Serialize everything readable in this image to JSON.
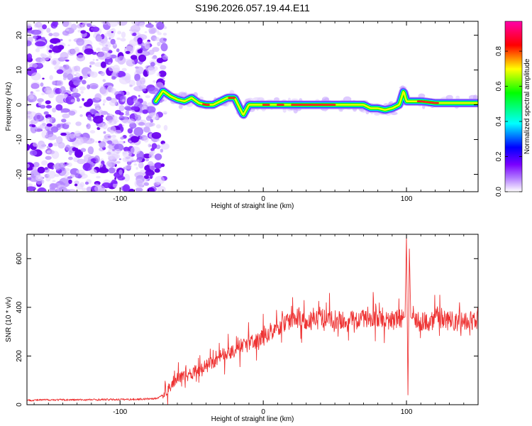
{
  "title": "S196.2026.057.19.44.E11",
  "chart_data": [
    {
      "type": "heatmap",
      "name": "spectrogram",
      "xlabel": "Height of straight line (km)",
      "ylabel": "Frequency (Hz)",
      "xlim": [
        -165,
        150
      ],
      "ylim": [
        -25,
        24
      ],
      "xticks": [
        -100,
        0,
        100
      ],
      "yticks": [
        20,
        10,
        0,
        -10,
        -20
      ],
      "colorbar": {
        "label": "Normalized spectral amplitude",
        "range": [
          0,
          0.97
        ],
        "ticks": [
          0.0,
          0.2,
          0.4,
          0.6,
          0.8
        ],
        "tick_labels": [
          "0.0",
          "0.2",
          "0.4",
          "0.6",
          "0.8"
        ],
        "colors": [
          "#ffffff",
          "#7a00ff",
          "#0000ff",
          "#00ffff",
          "#00ff00",
          "#ffff00",
          "#ff0000",
          "#ff00aa"
        ]
      },
      "noise_region_x": [
        -165,
        -75
      ],
      "ridge": {
        "x": [
          -75,
          -70,
          -65,
          -60,
          -55,
          -50,
          -45,
          -40,
          -35,
          -30,
          -25,
          -20,
          -17,
          -14,
          -10,
          0,
          10,
          20,
          30,
          40,
          50,
          60,
          70,
          75,
          80,
          85,
          90,
          95,
          98,
          100,
          110,
          120,
          130,
          140,
          150
        ],
        "y": [
          1,
          4,
          2.5,
          1.5,
          1,
          2,
          0.5,
          0,
          0,
          1,
          2,
          2,
          -0.5,
          -3,
          0,
          0,
          0,
          0,
          0,
          0,
          0,
          0,
          0,
          -1,
          -1,
          -1.5,
          -1,
          0,
          4,
          1,
          1,
          0.5,
          0.5,
          0.5,
          0.5
        ]
      }
    },
    {
      "type": "line",
      "name": "snr",
      "xlabel": "Height of straight line (km)",
      "ylabel": "SNR (10 * v/v)",
      "xlim": [
        -165,
        150
      ],
      "ylim": [
        0,
        700
      ],
      "xticks": [
        -100,
        0,
        100
      ],
      "yticks": [
        0,
        200,
        400,
        600
      ],
      "color": "#ee3333",
      "series": [
        {
          "name": "SNR",
          "x": [
            -165,
            -150,
            -130,
            -110,
            -90,
            -75,
            -70,
            -65,
            -60,
            -55,
            -50,
            -45,
            -40,
            -35,
            -30,
            -25,
            -20,
            -15,
            -10,
            -5,
            0,
            5,
            10,
            15,
            20,
            25,
            30,
            40,
            50,
            60,
            70,
            80,
            90,
            95,
            99,
            100,
            101,
            102,
            103,
            105,
            110,
            120,
            130,
            140,
            150
          ],
          "values": [
            18,
            20,
            20,
            21,
            22,
            25,
            40,
            70,
            110,
            120,
            130,
            150,
            160,
            175,
            200,
            210,
            230,
            240,
            250,
            260,
            275,
            300,
            320,
            340,
            350,
            355,
            345,
            350,
            350,
            345,
            350,
            345,
            345,
            350,
            360,
            690,
            40,
            640,
            360,
            345,
            340,
            345,
            345,
            340,
            345
          ]
        }
      ]
    }
  ]
}
